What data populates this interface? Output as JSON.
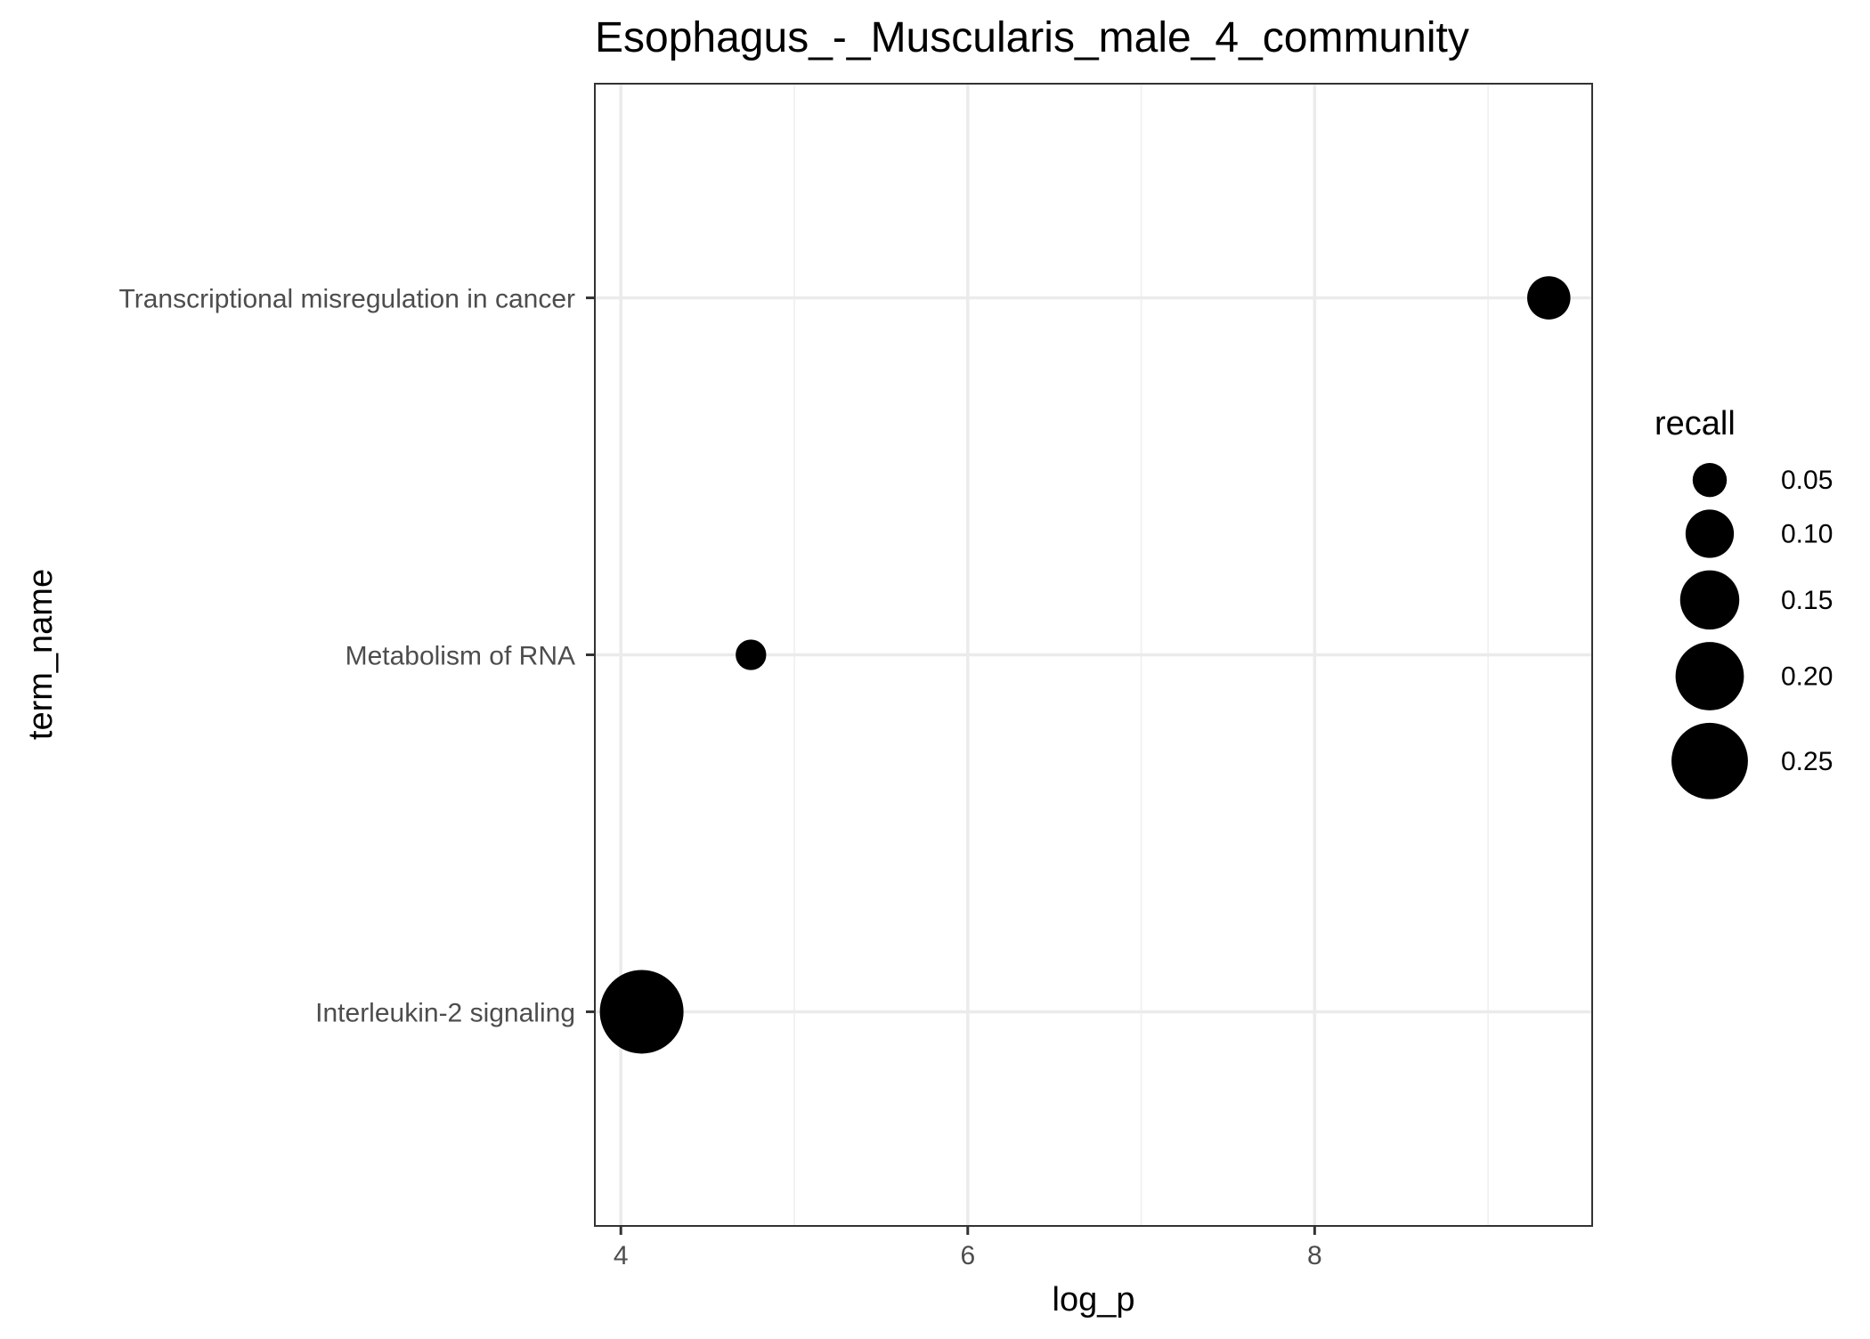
{
  "chart_data": {
    "type": "scatter",
    "title": "Esophagus_-_Muscularis_male_4_community",
    "xlabel": "log_p",
    "ylabel": "term_name",
    "xlim": [
      3.85,
      9.6
    ],
    "x_ticks": [
      4,
      6,
      8
    ],
    "x_tick_labels": [
      "4",
      "6",
      "8"
    ],
    "x_minor_ticks": [
      5,
      7,
      9
    ],
    "categories": [
      "Interleukin-2 signaling",
      "Metabolism of RNA",
      "Transcriptional misregulation in cancer"
    ],
    "points": [
      {
        "term_name": "Transcriptional misregulation in cancer",
        "log_p": 9.35,
        "recall": 0.08
      },
      {
        "term_name": "Metabolism of RNA",
        "log_p": 4.75,
        "recall": 0.04
      },
      {
        "term_name": "Interleukin-2 signaling",
        "log_p": 4.12,
        "recall": 0.3
      }
    ],
    "size_legend": {
      "title": "recall",
      "breaks": [
        0.05,
        0.1,
        0.15,
        0.2,
        0.25
      ],
      "labels": [
        "0.05",
        "0.10",
        "0.15",
        "0.20",
        "0.25"
      ]
    },
    "point_color": "#000000",
    "panel_border_color": "#333333",
    "grid_major_color": "#ebebeb",
    "grid_minor_color": "#f2f2f2",
    "theme": "bw"
  }
}
